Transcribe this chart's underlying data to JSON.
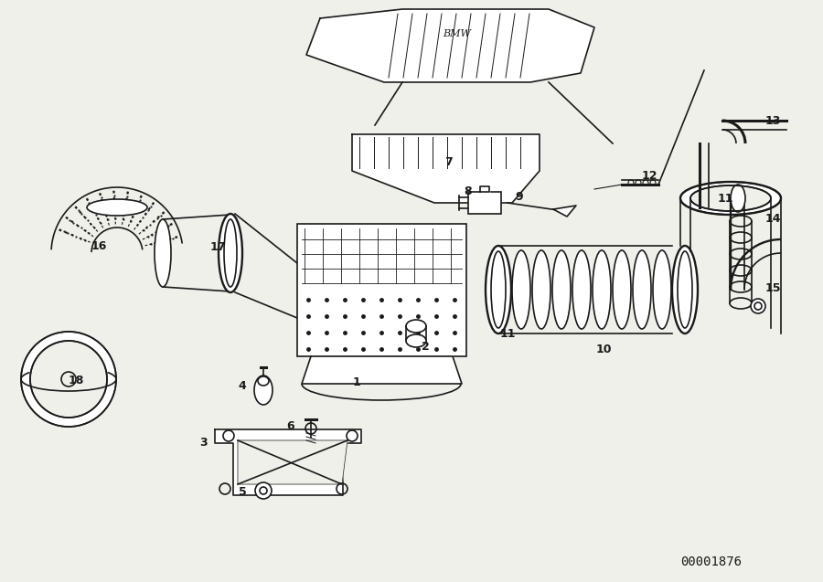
{
  "background_color": "#f0f0eb",
  "line_color": "#1a1a1a",
  "diagram_id": "00001876",
  "label_font_size": 9,
  "id_font_size": 10,
  "lw": 1.2
}
